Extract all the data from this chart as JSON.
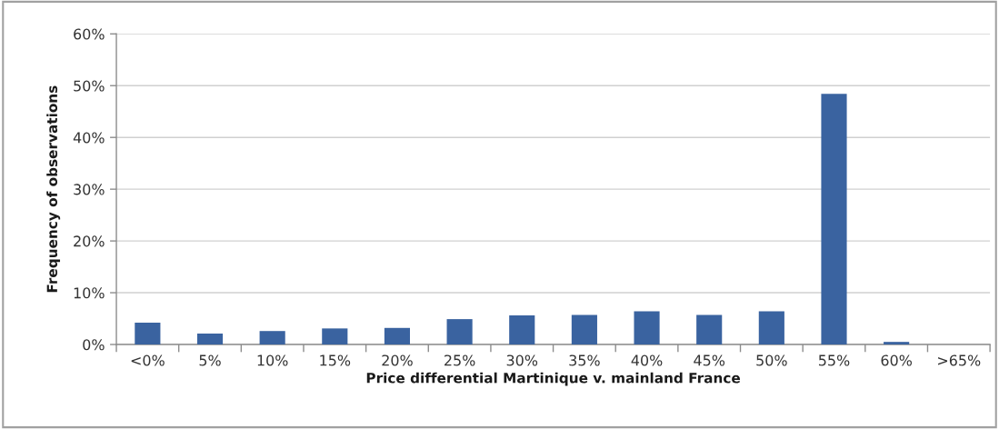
{
  "chart_data": {
    "type": "bar",
    "xlabel": "Price differential Martinique v. mainland France",
    "ylabel": "Frequency of observations",
    "categories": [
      "<0%",
      "5%",
      "10%",
      "15%",
      "20%",
      "25%",
      "30%",
      "35%",
      "40%",
      "45%",
      "50%",
      "55%",
      "60%",
      ">65%"
    ],
    "values": [
      4.2,
      2.1,
      2.6,
      3.1,
      3.2,
      4.9,
      5.6,
      5.7,
      6.4,
      5.7,
      6.4,
      48.4,
      0.5,
      0
    ],
    "color": "#3a63a0",
    "ylim": [
      0,
      60
    ],
    "yticks": [
      {
        "value": 0,
        "label": "0%"
      },
      {
        "value": 10,
        "label": "10%"
      },
      {
        "value": 20,
        "label": "20%"
      },
      {
        "value": 30,
        "label": "30%"
      },
      {
        "value": 40,
        "label": "40%"
      },
      {
        "value": 50,
        "label": "50%"
      },
      {
        "value": 60,
        "label": "60%"
      }
    ],
    "grid": "y"
  }
}
